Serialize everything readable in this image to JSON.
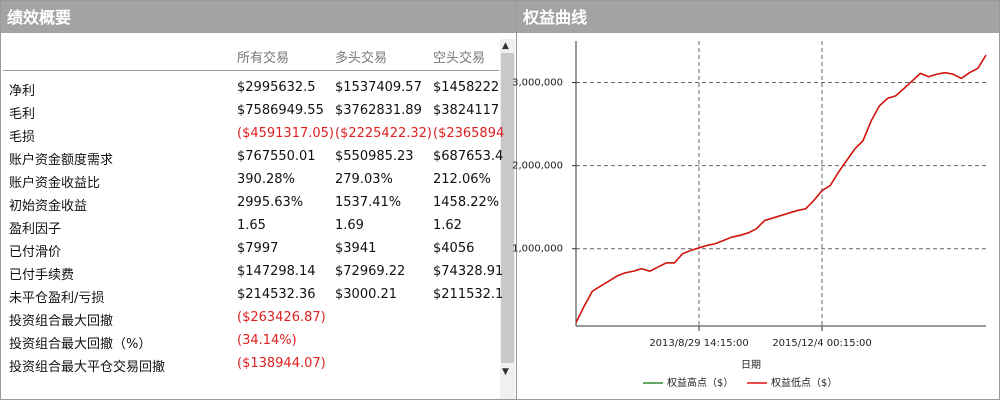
{
  "summary": {
    "title": "绩效概要",
    "columns": [
      "所有交易",
      "多头交易",
      "空头交易"
    ],
    "rows": [
      {
        "label": "净利",
        "values": [
          "$2995632.5",
          "$1537409.57",
          "$1458222"
        ]
      },
      {
        "label": "毛利",
        "values": [
          "$7586949.55",
          "$3762831.89",
          "$3824117"
        ]
      },
      {
        "label": "毛损",
        "values": [
          "($4591317.05)",
          "($2225422.32)",
          "($2365894"
        ]
      },
      {
        "label": "账户资金额度需求",
        "values": [
          "$767550.01",
          "$550985.23",
          "$687653.4"
        ]
      },
      {
        "label": "账户资金收益比",
        "values": [
          "390.28%",
          "279.03%",
          "212.06%"
        ]
      },
      {
        "label": "初始资金收益",
        "values": [
          "2995.63%",
          "1537.41%",
          "1458.22%"
        ]
      },
      {
        "label": "盈利因子",
        "values": [
          "1.65",
          "1.69",
          "1.62"
        ]
      },
      {
        "label": "已付滑价",
        "values": [
          "$7997",
          "$3941",
          "$4056"
        ]
      },
      {
        "label": "已付手续费",
        "values": [
          "$147298.14",
          "$72969.22",
          "$74328.91"
        ]
      },
      {
        "label": "未平仓盈利/亏损",
        "values": [
          "$214532.36",
          "$3000.21",
          "$211532.1"
        ]
      },
      {
        "label": "投资组合最大回撤",
        "values": [
          "($263426.87)"
        ]
      },
      {
        "label": "投资组合最大回撤（%）",
        "values": [
          "(34.14%)"
        ]
      },
      {
        "label": "投资组合最大平仓交易回撤",
        "values": [
          "($138944.07)"
        ]
      }
    ]
  },
  "chart_data": {
    "type": "line",
    "title": "权益曲线",
    "x_label": "日期",
    "xlim": [
      0,
      50
    ],
    "xticks": [
      {
        "value": 15,
        "label": "2013/8/29 14:15:00"
      },
      {
        "value": 30,
        "label": "2015/12/4 00:15:00"
      }
    ],
    "ylim": [
      70000,
      3500000
    ],
    "yticks": [
      {
        "value": 1000000,
        "label": "1,000,000"
      },
      {
        "value": 2000000,
        "label": "2,000,000"
      },
      {
        "value": 3000000,
        "label": "3,000,000"
      }
    ],
    "grid": true,
    "series": [
      {
        "name": "权益高点（$）",
        "color": "#2e8b2e",
        "values": [
          110000,
          310000,
          490000,
          550000,
          610000,
          670000,
          710000,
          730000,
          760000,
          730000,
          780000,
          830000,
          830000,
          940000,
          980000,
          1010000,
          1040000,
          1060000,
          1100000,
          1140000,
          1160000,
          1190000,
          1240000,
          1340000,
          1370000,
          1400000,
          1430000,
          1460000,
          1480000,
          1580000,
          1700000,
          1760000,
          1920000,
          2060000,
          2200000,
          2300000,
          2540000,
          2720000,
          2810000,
          2840000,
          2930000,
          3020000,
          3110000,
          3070000,
          3100000,
          3120000,
          3100000,
          3050000,
          3120000,
          3170000,
          3330000
        ]
      },
      {
        "name": "权益低点（$）",
        "color": "#e01010",
        "values": [
          110000,
          310000,
          490000,
          550000,
          610000,
          670000,
          710000,
          730000,
          760000,
          730000,
          780000,
          830000,
          830000,
          940000,
          980000,
          1010000,
          1040000,
          1060000,
          1100000,
          1140000,
          1160000,
          1190000,
          1240000,
          1340000,
          1370000,
          1400000,
          1430000,
          1460000,
          1480000,
          1580000,
          1700000,
          1760000,
          1920000,
          2060000,
          2200000,
          2300000,
          2540000,
          2720000,
          2810000,
          2840000,
          2930000,
          3020000,
          3110000,
          3070000,
          3100000,
          3120000,
          3100000,
          3050000,
          3120000,
          3170000,
          3330000
        ]
      }
    ]
  }
}
